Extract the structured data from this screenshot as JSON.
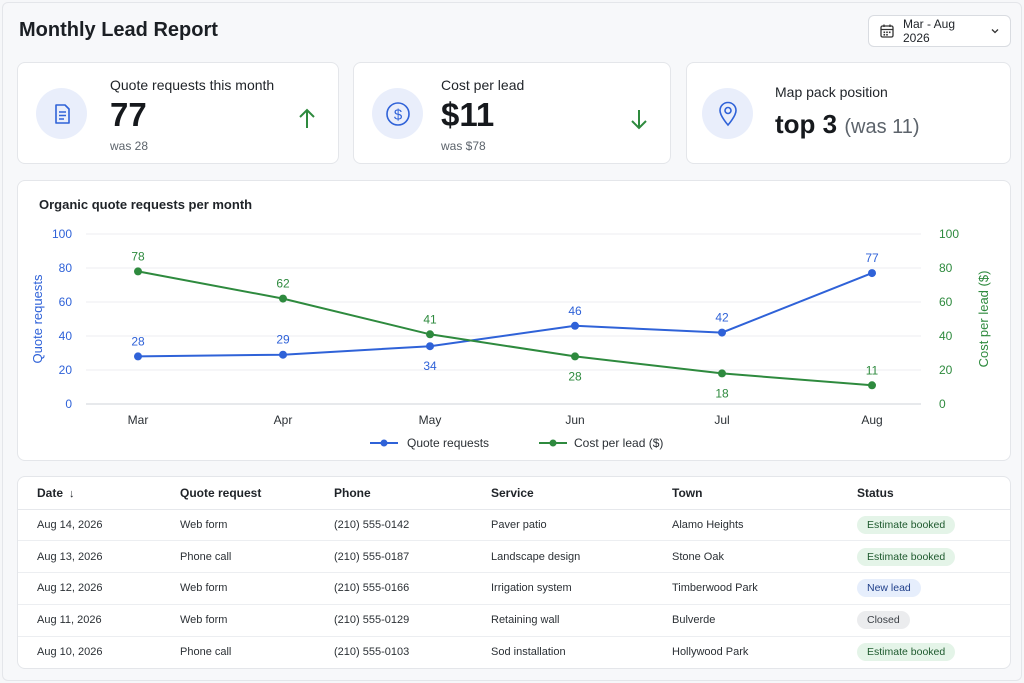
{
  "header": {
    "title": "Monthly Lead Report",
    "date_range": "Mar - Aug 2026"
  },
  "cards": [
    {
      "label": "Quote requests this month",
      "value": "77",
      "was": "was 28",
      "trend": "up",
      "icon": "document-icon"
    },
    {
      "label": "Cost per lead",
      "value": "$11",
      "was": "was $78",
      "trend": "down",
      "icon": "dollar-icon"
    },
    {
      "label": "Map pack position",
      "value": "top 3",
      "paren": "(was 11)",
      "icon": "map-pin-icon"
    }
  ],
  "colors": {
    "blue": "#2f62d8",
    "green": "#2e8a3e",
    "trend_green": "#2e8a3e",
    "badge_green": "#e4f4e8",
    "badge_blue": "#e6eefc",
    "badge_gray": "#ebecee"
  },
  "chart_data": {
    "type": "line",
    "title": "Organic quote requests per month",
    "categories": [
      "Mar",
      "Apr",
      "May",
      "Jun",
      "Jul",
      "Aug"
    ],
    "series": [
      {
        "name": "Quote requests",
        "axis": "left",
        "color": "#2f62d8",
        "values": [
          28,
          29,
          34,
          46,
          42,
          77
        ]
      },
      {
        "name": "Cost per lead ($)",
        "axis": "right",
        "color": "#2e8a3e",
        "values": [
          78,
          62,
          41,
          28,
          18,
          11
        ]
      }
    ],
    "ylabel": "Quote requests",
    "y2label": "Cost per lead ($)",
    "ylim": [
      0,
      100
    ],
    "y2lim": [
      0,
      100
    ],
    "yticks": [
      0,
      20,
      40,
      60,
      80,
      100
    ],
    "grid": true,
    "legend": "bottom"
  },
  "table": {
    "columns": [
      "Date",
      "Quote request",
      "Phone",
      "Service",
      "Town",
      "Status"
    ],
    "rows": [
      [
        "Aug 14, 2026",
        "Web form",
        "(210) 555-0142",
        "Paver patio",
        "Alamo Heights",
        "Estimate booked"
      ],
      [
        "Aug 13, 2026",
        "Phone call",
        "(210) 555-0187",
        "Landscape design",
        "Stone Oak",
        "Estimate booked"
      ],
      [
        "Aug 12, 2026",
        "Web form",
        "(210) 555-0166",
        "Irrigation system",
        "Timberwood Park",
        "New lead"
      ],
      [
        "Aug 11, 2026",
        "Web form",
        "(210) 555-0129",
        "Retaining wall",
        "Bulverde",
        "Closed"
      ],
      [
        "Aug 10, 2026",
        "Phone call",
        "(210) 555-0103",
        "Sod installation",
        "Hollywood Park",
        "Estimate booked"
      ]
    ]
  }
}
